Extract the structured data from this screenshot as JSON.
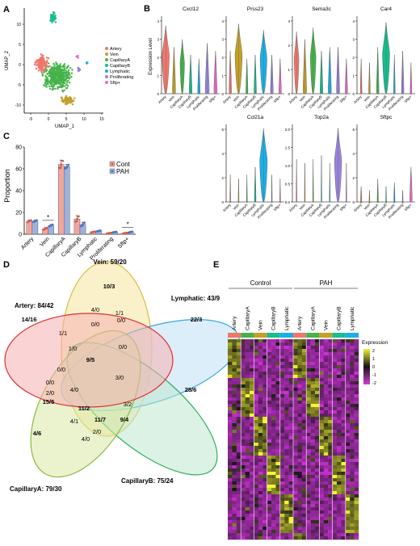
{
  "panels": {
    "a": "A",
    "b": "B",
    "c": "C",
    "d": "D",
    "e": "E"
  },
  "umap": {
    "xlabel": "UMAP_1",
    "ylabel": "UMAP_2",
    "xticks": [
      "-5",
      "0",
      "5",
      "10",
      "15"
    ],
    "yticks": [
      "10",
      "5",
      "0",
      "-5",
      "-10"
    ],
    "legend": [
      {
        "name": "Artery",
        "color": "#f0766c"
      },
      {
        "name": "Vein",
        "color": "#c3a028"
      },
      {
        "name": "CapillaryA",
        "color": "#45b34a"
      },
      {
        "name": "CapillaryB",
        "color": "#18bd8e"
      },
      {
        "name": "Lymphatic",
        "color": "#1eaee5"
      },
      {
        "name": "Proliferating",
        "color": "#9a82dd"
      },
      {
        "name": "Sftp+",
        "color": "#ef6bc6"
      }
    ]
  },
  "violin": {
    "ylabel": "Expression Level",
    "categories": [
      "Artery",
      "Vein",
      "CapillaryA",
      "CapillaryB",
      "Lymphatic",
      "Proliferating",
      "Sftp+"
    ],
    "colors": [
      "#f0766c",
      "#c3a028",
      "#45b34a",
      "#18bd8e",
      "#1eaee5",
      "#9a82dd",
      "#ef6bc6"
    ],
    "genes": [
      {
        "name": "Cxcl12",
        "yticks": [
          "4",
          "3",
          "2",
          "1",
          "0"
        ],
        "widths": [
          0.9,
          0.4,
          0.55,
          0.35,
          0.3,
          0.5,
          0.4
        ],
        "heights": [
          0.88,
          0.6,
          0.7,
          0.5,
          0.45,
          0.65,
          0.55
        ]
      },
      {
        "name": "Prss23",
        "yticks": [
          "4",
          "3",
          "2",
          "1",
          "0"
        ],
        "widths": [
          0.3,
          0.9,
          0.25,
          0.3,
          0.85,
          0.35,
          0.3
        ],
        "heights": [
          0.55,
          0.9,
          0.45,
          0.5,
          0.82,
          0.5,
          0.45
        ]
      },
      {
        "name": "Sema3c",
        "yticks": [
          "3",
          "2",
          "1",
          "0"
        ],
        "widths": [
          0.6,
          0.45,
          0.7,
          0.35,
          0.4,
          0.4,
          0.3
        ],
        "heights": [
          0.8,
          0.7,
          0.85,
          0.55,
          0.6,
          0.6,
          0.45
        ]
      },
      {
        "name": "Car4",
        "yticks": [
          "4",
          "3",
          "2",
          "1",
          "0"
        ],
        "widths": [
          0.2,
          0.2,
          0.3,
          0.9,
          0.2,
          0.3,
          0.2
        ],
        "heights": [
          0.45,
          0.4,
          0.6,
          0.92,
          0.5,
          0.55,
          0.4
        ]
      },
      {
        "name": "Ccl21a",
        "yticks": [
          "6",
          "4",
          "2",
          "0"
        ],
        "widths": [
          0.1,
          0.1,
          0.1,
          0.2,
          0.95,
          0.1,
          0.1
        ],
        "heights": [
          0.35,
          0.3,
          0.35,
          0.45,
          0.95,
          0.35,
          0.3
        ]
      },
      {
        "name": "Top2a",
        "yticks": [
          "2.0",
          "1.5",
          "1.0",
          "0.5",
          "0.0"
        ],
        "widths": [
          0.1,
          0.1,
          0.1,
          0.1,
          0.1,
          0.9,
          0.1
        ],
        "heights": [
          0.55,
          0.5,
          0.55,
          0.6,
          0.5,
          0.95,
          0.5
        ]
      },
      {
        "name": "Sftpc",
        "yticks": [
          "6",
          "4",
          "2",
          "0"
        ],
        "widths": [
          0.15,
          0.1,
          0.15,
          0.1,
          0.15,
          0.1,
          0.3
        ],
        "heights": [
          0.2,
          0.15,
          0.3,
          0.2,
          0.25,
          0.15,
          0.45
        ]
      }
    ]
  },
  "chart_data": {
    "type": "bar",
    "title": "",
    "xlabel": "",
    "ylabel": "Proportion",
    "ylim": [
      0,
      80
    ],
    "yticks": [
      "80",
      "60",
      "40",
      "20",
      "0"
    ],
    "categories": [
      "Artery",
      "Vein",
      "CapillaryA",
      "CapillaryB",
      "Lymphatic",
      "Proliferating",
      "Sftp+"
    ],
    "series": [
      {
        "name": "Cont",
        "color": "#f2a59b",
        "values": [
          12,
          5,
          64,
          14,
          2,
          1,
          1
        ],
        "errors": [
          1,
          1,
          4,
          3,
          0.5,
          0.3,
          0.5
        ]
      },
      {
        "name": "PAH",
        "color": "#9db1df",
        "values": [
          12,
          8,
          62,
          9,
          3,
          2,
          2
        ],
        "errors": [
          1,
          1,
          2,
          2,
          0.5,
          0.3,
          0.5
        ]
      }
    ],
    "significance": [
      {
        "category": "Vein",
        "label": "*"
      },
      {
        "category": "Sftp+",
        "label": "*"
      }
    ],
    "legend_position": "right"
  },
  "venn": {
    "sets": [
      {
        "name": "Vein: 59/20",
        "color": "#f5e6a0",
        "stroke": "#e0b840"
      },
      {
        "name": "Lymphatic: 43/9",
        "color": "#bfe0f5",
        "stroke": "#3aa8e0"
      },
      {
        "name": "CapillaryB: 75/24",
        "color": "#bfe8cf",
        "stroke": "#30b060"
      },
      {
        "name": "CapillaryA: 79/30",
        "color": "#d9e8a6",
        "stroke": "#90b840"
      },
      {
        "name": "Artery: 84/42",
        "color": "#f5b0b0",
        "stroke": "#e03030"
      }
    ],
    "region_labels": [
      {
        "text": "10/3",
        "bold": true
      },
      {
        "text": "22/3",
        "bold": true
      },
      {
        "text": "14/16",
        "bold": true
      },
      {
        "text": "28/6",
        "bold": true
      },
      {
        "text": "4/6",
        "bold": true
      },
      {
        "text": "4/0",
        "bold": false
      },
      {
        "text": "1/1",
        "bold": false
      },
      {
        "text": "1/1",
        "bold": false
      },
      {
        "text": "0/0",
        "bold": false
      },
      {
        "text": "0/0",
        "bold": false
      },
      {
        "text": "1/0",
        "bold": false
      },
      {
        "text": "0/0",
        "bold": false
      },
      {
        "text": "9/5",
        "bold": true
      },
      {
        "text": "0/0",
        "bold": false
      },
      {
        "text": "3/0",
        "bold": false
      },
      {
        "text": "4/0",
        "bold": false
      },
      {
        "text": "0/0",
        "bold": false
      },
      {
        "text": "2/0",
        "bold": false
      },
      {
        "text": "15/5",
        "bold": true
      },
      {
        "text": "11/2",
        "bold": true
      },
      {
        "text": "3/2",
        "bold": false
      },
      {
        "text": "11/7",
        "bold": true
      },
      {
        "text": "9/4",
        "bold": true
      },
      {
        "text": "4/1",
        "bold": false
      },
      {
        "text": "2/0",
        "bold": false
      },
      {
        "text": "4/0",
        "bold": false
      }
    ]
  },
  "heatmap": {
    "groups": [
      "Control",
      "PAH"
    ],
    "columns": [
      "Artery",
      "CapillaryA",
      "Vein",
      "CapillaryB",
      "Lymphatic",
      "Artery",
      "CapillaryA",
      "Vein",
      "CapillaryB",
      "Lymphatic"
    ],
    "column_colors": [
      "#f0766c",
      "#45b34a",
      "#c3a028",
      "#18bd8e",
      "#1eaee5",
      "#f0766c",
      "#45b34a",
      "#c3a028",
      "#18bd8e",
      "#1eaee5"
    ],
    "legend_title": "Expression",
    "legend_ticks": [
      "2",
      "1",
      "0",
      "-1",
      "-2"
    ]
  }
}
